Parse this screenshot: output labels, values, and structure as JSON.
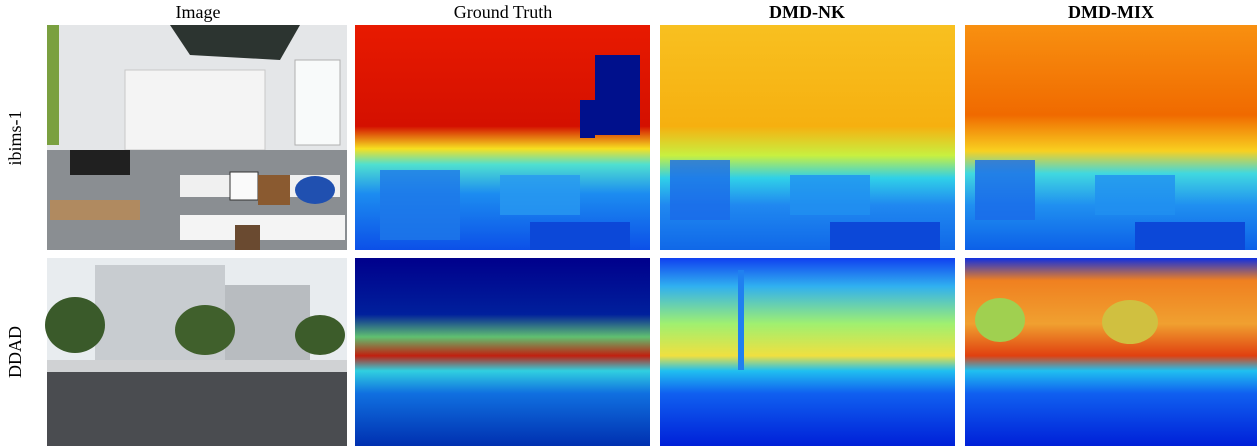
{
  "columns": [
    "Image",
    "Ground Truth",
    "DMD-NK",
    "DMD-MIX"
  ],
  "rows": [
    "ibims-1",
    "DDAD"
  ]
}
